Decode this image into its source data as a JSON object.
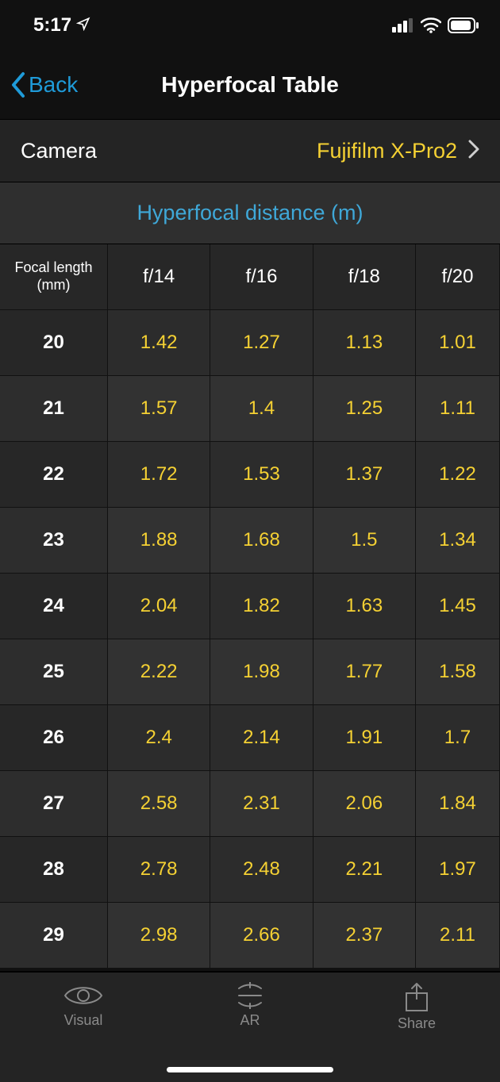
{
  "status": {
    "time": "5:17"
  },
  "nav": {
    "back_label": "Back",
    "title": "Hyperfocal Table"
  },
  "camera": {
    "label": "Camera",
    "value": "Fujifilm X-Pro2"
  },
  "distance_header": "Hyperfocal distance (m)",
  "table": {
    "focal_label_line1": "Focal length",
    "focal_label_line2": "(mm)",
    "apertures": [
      "f/14",
      "f/16",
      "f/18",
      "f/20"
    ],
    "rows": [
      {
        "fl": "20",
        "vals": [
          "1.42",
          "1.27",
          "1.13",
          "1.01"
        ]
      },
      {
        "fl": "21",
        "vals": [
          "1.57",
          "1.4",
          "1.25",
          "1.11"
        ]
      },
      {
        "fl": "22",
        "vals": [
          "1.72",
          "1.53",
          "1.37",
          "1.22"
        ]
      },
      {
        "fl": "23",
        "vals": [
          "1.88",
          "1.68",
          "1.5",
          "1.34"
        ]
      },
      {
        "fl": "24",
        "vals": [
          "2.04",
          "1.82",
          "1.63",
          "1.45"
        ]
      },
      {
        "fl": "25",
        "vals": [
          "2.22",
          "1.98",
          "1.77",
          "1.58"
        ]
      },
      {
        "fl": "26",
        "vals": [
          "2.4",
          "2.14",
          "1.91",
          "1.7"
        ]
      },
      {
        "fl": "27",
        "vals": [
          "2.58",
          "2.31",
          "2.06",
          "1.84"
        ]
      },
      {
        "fl": "28",
        "vals": [
          "2.78",
          "2.48",
          "2.21",
          "1.97"
        ]
      },
      {
        "fl": "29",
        "vals": [
          "2.98",
          "2.66",
          "2.37",
          "2.11"
        ]
      }
    ]
  },
  "tabs": {
    "visual": "Visual",
    "ar": "AR",
    "share": "Share"
  },
  "colors": {
    "accent_yellow": "#f5d133",
    "accent_blue": "#1f9bd9",
    "bg": "#111111",
    "row_a": "#2c2c2c",
    "row_b": "#323232",
    "header_bg": "#272727",
    "tab_bg": "#242424",
    "muted": "#8a8a8a"
  }
}
